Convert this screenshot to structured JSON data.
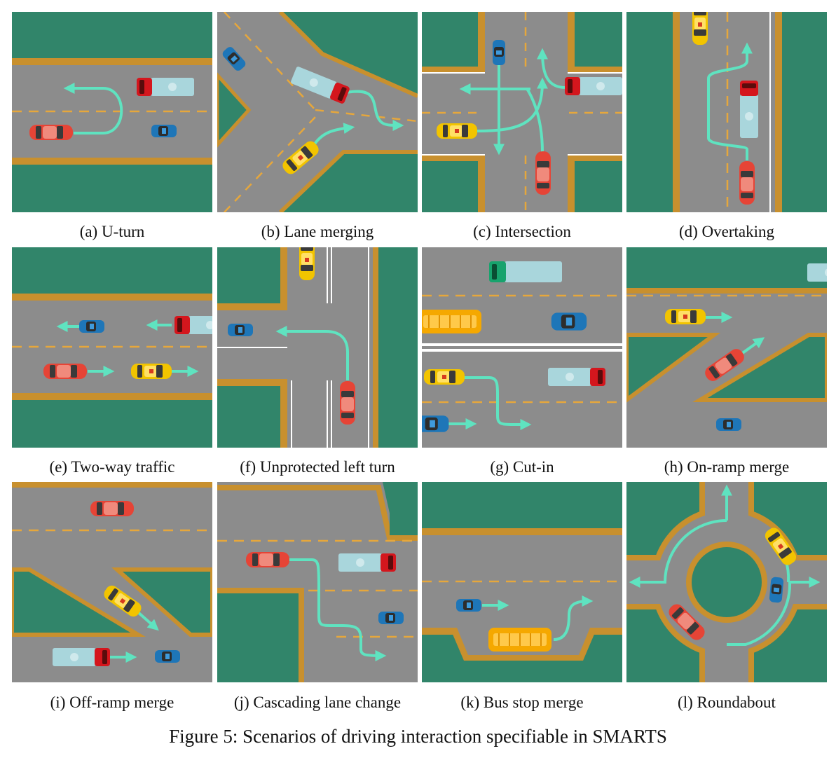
{
  "figure": {
    "caption": "Figure 5: Scenarios of driving interaction specifiable in SMARTS",
    "colors": {
      "grass": "#31856a",
      "road": "#8c8c8c",
      "curb": "#c8902e",
      "lane_dash": "#e6a73c",
      "path": "#5fe3c0",
      "car_red": "#e64436",
      "taxi_yellow": "#f2c400",
      "car_blue": "#1e76b8",
      "truck_body": "#a9d6dc",
      "truck_cab_red": "#d4161d",
      "truck_cab_green": "#17a36d",
      "bus": "#f5a800"
    },
    "panels": [
      {
        "id": "a",
        "caption": "(a) U-turn"
      },
      {
        "id": "b",
        "caption": "(b) Lane merging"
      },
      {
        "id": "c",
        "caption": "(c) Intersection"
      },
      {
        "id": "d",
        "caption": "(d) Overtaking"
      },
      {
        "id": "e",
        "caption": "(e) Two-way traffic"
      },
      {
        "id": "f",
        "caption": "(f) Unprotected left turn"
      },
      {
        "id": "g",
        "caption": "(g) Cut-in"
      },
      {
        "id": "h",
        "caption": "(h) On-ramp merge"
      },
      {
        "id": "i",
        "caption": "(i) Off-ramp merge"
      },
      {
        "id": "j",
        "caption": "(j) Cascading lane change"
      },
      {
        "id": "k",
        "caption": "(k) Bus stop merge"
      },
      {
        "id": "l",
        "caption": "(l) Roundabout"
      }
    ]
  }
}
